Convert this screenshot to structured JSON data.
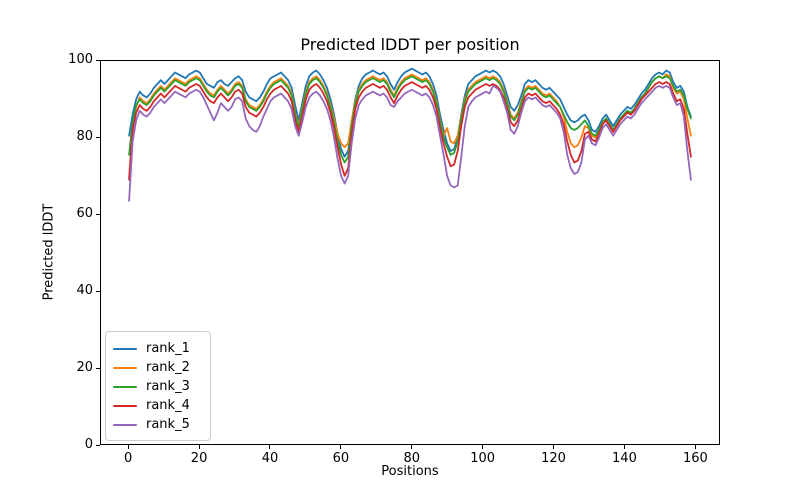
{
  "chart_data": {
    "type": "line",
    "title": "Predicted lDDT per position",
    "xlabel": "Positions",
    "ylabel": "Predicted lDDT",
    "xlim": [
      -7.95,
      166.95
    ],
    "ylim": [
      0,
      100
    ],
    "xticks": [
      0,
      20,
      40,
      60,
      80,
      100,
      120,
      140,
      160
    ],
    "yticks": [
      0,
      20,
      40,
      60,
      80,
      100
    ],
    "grid": false,
    "legend_position": "lower left",
    "x_start": 0,
    "x_step": 1,
    "n_points": 160,
    "series": [
      {
        "name": "rank_1",
        "color": "#1f77b4",
        "values": [
          80.5,
          86,
          90,
          92,
          91,
          90.5,
          91.5,
          93,
          94,
          95,
          94,
          95,
          96,
          97,
          96.5,
          96,
          95.5,
          96.5,
          97,
          97.5,
          97,
          95.5,
          94,
          93.5,
          93,
          94.5,
          95,
          94,
          93.5,
          94.5,
          95.5,
          96,
          95,
          92,
          90.5,
          90,
          89.5,
          90.5,
          92,
          94,
          95.5,
          96,
          96.5,
          97,
          96,
          95,
          93,
          88.5,
          84.5,
          89,
          93.5,
          96,
          97,
          97.5,
          96.5,
          95,
          93,
          90,
          86,
          81,
          77,
          75,
          76.5,
          84,
          90,
          93.5,
          95.5,
          96.5,
          97,
          97.5,
          97,
          96.5,
          97,
          96,
          94,
          92.5,
          94.5,
          96,
          97,
          97.5,
          98,
          97.5,
          97,
          96.5,
          97,
          96,
          94,
          91,
          86,
          82,
          78.5,
          76.5,
          77,
          80,
          86,
          91,
          94,
          95,
          96,
          96.5,
          97,
          97.5,
          97,
          97.5,
          97,
          96,
          94,
          91,
          88,
          87,
          88.5,
          91,
          94,
          95,
          94.5,
          95,
          94,
          93,
          92.5,
          93,
          92,
          91,
          90,
          88,
          86,
          84.5,
          84,
          84.5,
          85.5,
          86,
          84.5,
          82,
          81.5,
          83,
          85,
          86,
          84.5,
          83,
          84.5,
          86,
          87,
          88,
          87.5,
          88.5,
          90,
          91.5,
          92.5,
          94,
          95.5,
          96.5,
          97,
          96.5,
          97.5,
          97,
          94.5,
          93,
          93.5,
          92,
          88,
          85.5
        ]
      },
      {
        "name": "rank_2",
        "color": "#ff7f0e",
        "values": [
          69.5,
          83,
          88,
          90.5,
          89.5,
          89,
          90,
          91.5,
          92.5,
          93.5,
          92.5,
          93.5,
          94.5,
          95.5,
          95,
          94.5,
          94,
          95,
          95.5,
          96,
          95.5,
          94,
          92.5,
          91.5,
          91,
          92.5,
          93.5,
          92.5,
          91.5,
          92.5,
          94,
          94.5,
          93.5,
          90,
          88.5,
          88,
          87.5,
          88.5,
          90,
          92,
          93.5,
          94.5,
          95,
          95.5,
          94.5,
          93.5,
          91.5,
          86.5,
          83,
          87.5,
          92,
          94.5,
          95.5,
          96,
          95,
          93.5,
          91.5,
          88.5,
          85,
          81,
          78.5,
          77.5,
          78.5,
          84.5,
          89.5,
          92.5,
          94,
          95,
          95.5,
          96,
          95.5,
          95,
          95.5,
          94.5,
          92.5,
          91,
          93,
          94.5,
          95.5,
          96,
          96.5,
          96,
          95.5,
          95,
          95.5,
          94.5,
          92.5,
          89.5,
          84.5,
          80.5,
          82.5,
          79,
          78.5,
          80.5,
          85.5,
          90,
          92.5,
          93.5,
          94.5,
          95,
          95.5,
          96,
          95.5,
          96,
          95.5,
          94.5,
          92.5,
          89.5,
          86,
          85,
          86.5,
          89.5,
          92.5,
          93.5,
          93,
          93.5,
          92.5,
          91.5,
          91,
          91.5,
          90.5,
          89.5,
          88,
          85.5,
          81.5,
          78.5,
          77.5,
          78,
          80,
          83,
          82.5,
          80.5,
          80,
          82,
          84,
          85,
          83.5,
          82,
          83.5,
          85,
          86,
          87,
          86.5,
          87.5,
          89,
          90.5,
          91.5,
          93,
          94.5,
          95.5,
          96,
          95.5,
          96.5,
          96,
          93,
          91.5,
          92,
          90,
          85,
          80.5
        ]
      },
      {
        "name": "rank_3",
        "color": "#2ca02c",
        "values": [
          75.5,
          84,
          88.5,
          90,
          89,
          88.5,
          89.5,
          91,
          92,
          93,
          92,
          93,
          94,
          95,
          94.5,
          94,
          93.5,
          94.5,
          95,
          95.5,
          95,
          93.5,
          92,
          91,
          90.5,
          92,
          93,
          92,
          91,
          92,
          93.5,
          94,
          93,
          89.5,
          88,
          87.5,
          87,
          88,
          89.5,
          91.5,
          93,
          94,
          94.5,
          95,
          94,
          93,
          91,
          86,
          82.5,
          87,
          91.5,
          94,
          95,
          95.5,
          94.5,
          93,
          91,
          88,
          84,
          79,
          75.5,
          73.5,
          75,
          83,
          89,
          92,
          93.5,
          94.5,
          95,
          95.5,
          95,
          94.5,
          95,
          94,
          92,
          90.5,
          92.5,
          94,
          95,
          95.5,
          96,
          95.5,
          95,
          94.5,
          95,
          94,
          92,
          89,
          84,
          80,
          77.5,
          75.5,
          76,
          79,
          85,
          89.5,
          92,
          93,
          94,
          94.5,
          95,
          95.5,
          95,
          95.5,
          95,
          94,
          92,
          89,
          85.5,
          84.5,
          86,
          89,
          92,
          93,
          92.5,
          93,
          92,
          91,
          90.5,
          91,
          90,
          89,
          88,
          86,
          84,
          82.5,
          82,
          82.5,
          83.5,
          84.5,
          83,
          81,
          80.5,
          82,
          84,
          85,
          83.5,
          82,
          83.5,
          85,
          86,
          87,
          86.5,
          87.5,
          89,
          90.5,
          91.5,
          93,
          94.5,
          95.5,
          96,
          95.5,
          96,
          95.5,
          93.5,
          92,
          92.5,
          91,
          87.5,
          85
        ]
      },
      {
        "name": "rank_4",
        "color": "#d62728",
        "values": [
          69,
          82,
          86.5,
          88.5,
          87.5,
          87,
          88,
          89.5,
          90.5,
          91.5,
          90.5,
          91.5,
          92.5,
          93.5,
          93,
          92.5,
          92,
          93,
          93.5,
          94,
          93.5,
          92,
          90.5,
          89.5,
          89,
          90.5,
          91.5,
          90.5,
          89.5,
          90.5,
          92,
          92.5,
          91.5,
          88,
          86.5,
          86,
          85.5,
          86.5,
          88,
          90,
          91.5,
          92.5,
          93,
          93.5,
          92.5,
          91.5,
          89.5,
          84.5,
          81.5,
          85.5,
          90,
          92.5,
          93.5,
          94,
          93,
          91.5,
          89.5,
          86.5,
          82.5,
          77.5,
          73,
          70,
          72,
          81,
          87.5,
          90.5,
          92,
          93,
          93.5,
          94,
          93.5,
          93,
          93.5,
          92.5,
          90.5,
          89,
          91,
          92.5,
          93.5,
          94,
          94.5,
          94,
          93.5,
          93,
          93.5,
          92.5,
          90.5,
          87.5,
          82.5,
          78.5,
          75,
          72.5,
          73,
          76.5,
          83,
          88,
          90.5,
          91.5,
          92.5,
          93,
          93.5,
          94,
          93.5,
          94,
          93.5,
          92.5,
          90.5,
          87.5,
          84,
          83,
          84.5,
          87.5,
          90.5,
          91.5,
          91,
          91.5,
          90.5,
          89.5,
          89,
          89.5,
          88.5,
          87.5,
          86,
          83.5,
          79,
          75.5,
          73.5,
          74,
          76.5,
          81,
          81.5,
          79.5,
          79,
          81,
          83.5,
          84.5,
          83,
          81.5,
          83,
          84.5,
          85.5,
          86.5,
          86,
          87,
          88.5,
          90,
          91,
          92,
          93,
          94,
          94.5,
          94,
          94.5,
          94,
          91.5,
          89.5,
          90,
          87.5,
          81,
          75
        ]
      },
      {
        "name": "rank_5",
        "color": "#9467bd",
        "values": [
          63.5,
          79,
          84.5,
          87,
          86,
          85.5,
          86.5,
          88,
          89,
          90,
          89,
          90,
          91,
          92,
          91.5,
          91,
          90.5,
          91.5,
          92,
          92.5,
          92,
          90.5,
          88.5,
          86.5,
          84.5,
          86.5,
          89,
          88,
          87,
          88,
          90,
          90.5,
          89.5,
          85,
          83,
          82,
          81.5,
          83,
          85.5,
          87.5,
          89.5,
          90.5,
          91,
          91.5,
          90.5,
          89.5,
          87.5,
          83,
          80.5,
          84,
          88,
          90.5,
          91.5,
          92,
          91,
          89.5,
          87.5,
          84.5,
          80,
          74.5,
          70,
          68,
          70,
          78.5,
          85,
          88.5,
          90,
          91,
          91.5,
          92,
          91.5,
          91,
          91.5,
          90.5,
          88.5,
          88,
          89.5,
          90.5,
          91.5,
          92,
          92.5,
          92,
          91.5,
          91,
          91.5,
          90.5,
          88.5,
          85.5,
          80.5,
          75.5,
          70,
          67.5,
          67,
          67.5,
          75,
          83,
          88,
          89.5,
          90.5,
          91,
          91.5,
          92,
          91.5,
          93.5,
          93,
          92,
          89.5,
          86.5,
          82,
          81,
          83,
          86.5,
          89.5,
          90.5,
          90,
          90.5,
          89.5,
          88.5,
          88,
          88.5,
          87.5,
          86.5,
          85,
          81.5,
          75.5,
          72,
          70.5,
          71,
          73.5,
          79.5,
          80.5,
          78.5,
          78,
          80,
          82.5,
          83.5,
          82,
          80.5,
          82,
          83.5,
          84.5,
          85.5,
          85,
          86,
          87.5,
          89,
          90,
          91,
          92,
          93,
          93.5,
          93,
          93.5,
          93,
          90.5,
          88.5,
          89,
          85.5,
          76.5,
          69
        ]
      }
    ],
    "axis_color": "#000000",
    "background_color": "#ffffff"
  }
}
